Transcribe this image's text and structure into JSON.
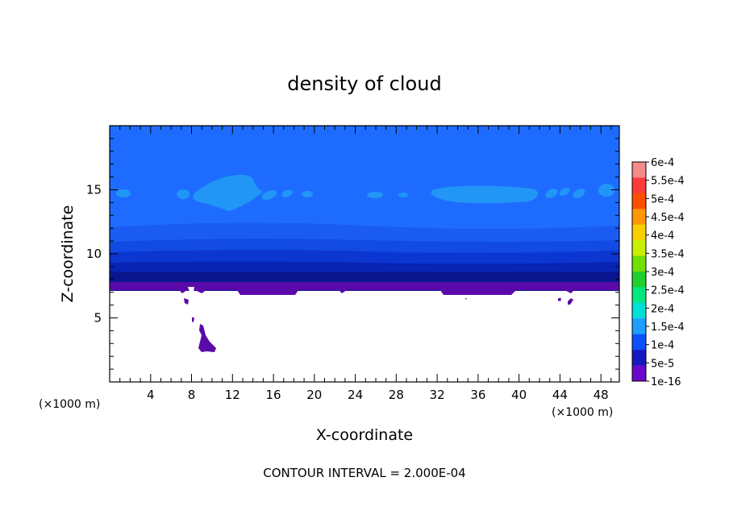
{
  "chart_data": {
    "type": "contour",
    "title": "density of cloud",
    "xlabel": "X-coordinate",
    "ylabel": "Z-coordinate",
    "x_unit_left": "(×1000 m)",
    "x_unit_right": "(×1000 m)",
    "xlim": [
      0,
      49.8
    ],
    "ylim": [
      0,
      20
    ],
    "xticks": [
      "4",
      "8",
      "12",
      "16",
      "20",
      "24",
      "28",
      "32",
      "36",
      "40",
      "44",
      "48"
    ],
    "yticks": [
      "5",
      "10",
      "15"
    ],
    "footer": "CONTOUR INTERVAL = 2.000E-04",
    "colorbar": {
      "labels": [
        "6e-4",
        "5.5e-4",
        "5e-4",
        "4.5e-4",
        "4e-4",
        "3.5e-4",
        "3e-4",
        "2.5e-4",
        "2e-4",
        "1.5e-4",
        "1e-4",
        "5e-5",
        "1e-16"
      ],
      "colors": [
        "#f48a8a",
        "#ff3a3a",
        "#ff4e00",
        "#ff9800",
        "#f8d000",
        "#c8f000",
        "#70e000",
        "#20d030",
        "#00e880",
        "#00e0d8",
        "#1e9eff",
        "#0a50ff",
        "#1818c0",
        "#6a0ac8"
      ]
    },
    "cloud_base_z": 7.0,
    "cloud_top_z": 20,
    "field_colors": {
      "upper": "#1e6cff",
      "light_patches": "#2196f6",
      "band1": "#1a5cf2",
      "band2": "#124ae4",
      "band3": "#0c36d0",
      "band4": "#0824b4",
      "band5": "#0a1690",
      "base": "#5a0aa8"
    }
  }
}
